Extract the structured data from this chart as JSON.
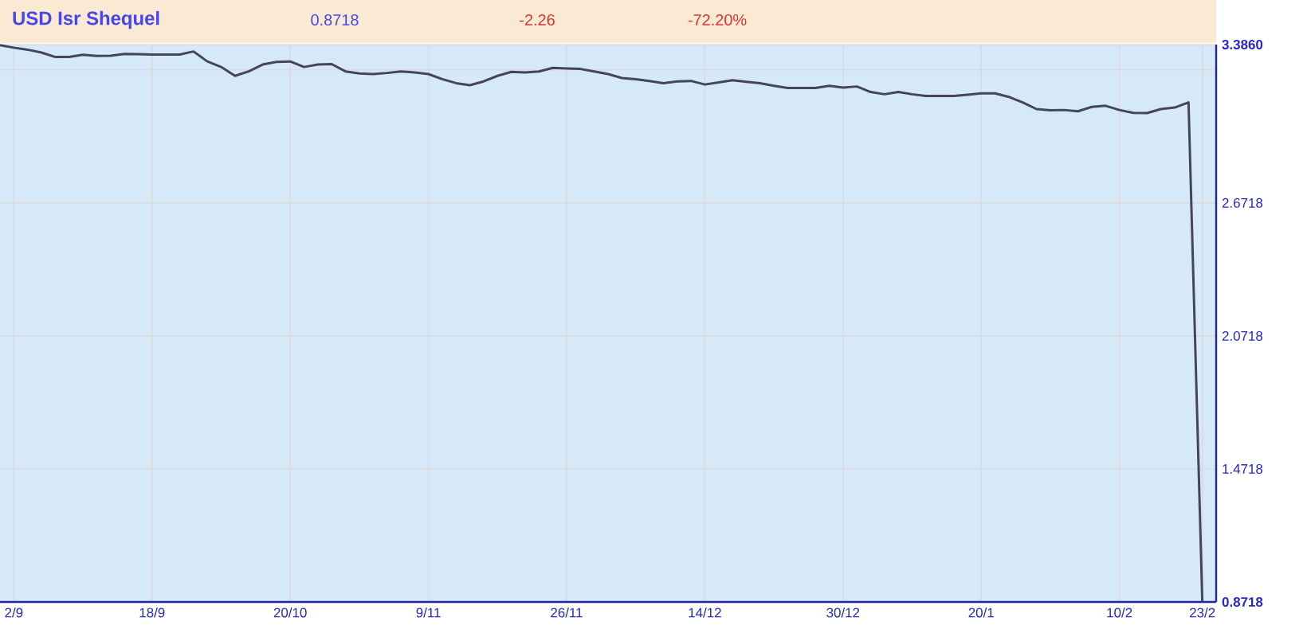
{
  "chart_data": {
    "type": "line",
    "title": "USD Isr Shequel",
    "annotations": [
      "0.8718",
      "-2.26",
      "-72.20%"
    ],
    "categories": [
      null,
      "2/9",
      null,
      null,
      null,
      null,
      null,
      null,
      null,
      null,
      null,
      "18/9",
      null,
      null,
      null,
      null,
      null,
      null,
      null,
      null,
      null,
      "20/10",
      null,
      null,
      null,
      null,
      null,
      null,
      null,
      null,
      null,
      "9/11",
      null,
      null,
      null,
      null,
      null,
      null,
      null,
      null,
      null,
      "26/11",
      null,
      null,
      null,
      null,
      null,
      null,
      null,
      null,
      null,
      "14/12",
      null,
      null,
      null,
      null,
      null,
      null,
      null,
      null,
      null,
      "30/12",
      null,
      null,
      null,
      null,
      null,
      null,
      null,
      null,
      null,
      "20/1",
      null,
      null,
      null,
      null,
      null,
      null,
      null,
      null,
      null,
      "10/2",
      null,
      null,
      null,
      null,
      null,
      "23/2"
    ],
    "series": [
      {
        "color": "#44445e",
        "values": [
          3.383,
          3.372,
          3.363,
          3.35,
          3.33,
          3.33,
          3.34,
          3.335,
          3.336,
          3.344,
          3.343,
          3.341,
          3.341,
          3.341,
          3.355,
          3.31,
          3.285,
          3.245,
          3.265,
          3.296,
          3.308,
          3.31,
          3.285,
          3.296,
          3.298,
          3.265,
          3.256,
          3.253,
          3.258,
          3.265,
          3.26,
          3.253,
          3.23,
          3.212,
          3.203,
          3.22,
          3.245,
          3.263,
          3.26,
          3.265,
          3.281,
          3.278,
          3.276,
          3.265,
          3.253,
          3.235,
          3.23,
          3.222,
          3.212,
          3.22,
          3.222,
          3.206,
          3.215,
          3.225,
          3.218,
          3.212,
          3.2,
          3.19,
          3.19,
          3.19,
          3.2,
          3.192,
          3.197,
          3.172,
          3.162,
          3.172,
          3.162,
          3.154,
          3.154,
          3.154,
          3.16,
          3.166,
          3.166,
          3.15,
          3.125,
          3.095,
          3.09,
          3.091,
          3.085,
          3.105,
          3.11,
          3.091,
          3.078,
          3.077,
          3.095,
          3.102,
          3.125,
          0.872
        ]
      }
    ],
    "ylim": [
      0.8718,
      3.386
    ],
    "yticks": [
      {
        "value": 0.8718,
        "label": "**0.8718**"
      },
      {
        "value": 1.4718,
        "label": "1.4718"
      },
      {
        "value": 2.0718,
        "label": "2.0718"
      },
      {
        "value": 2.6718,
        "label": "2.6718"
      },
      {
        "value": 3.2718,
        "label": null
      },
      {
        "value": 3.386,
        "label": "**3.3860**"
      }
    ],
    "grid": true,
    "marker": "none",
    "line_style": "solid"
  }
}
